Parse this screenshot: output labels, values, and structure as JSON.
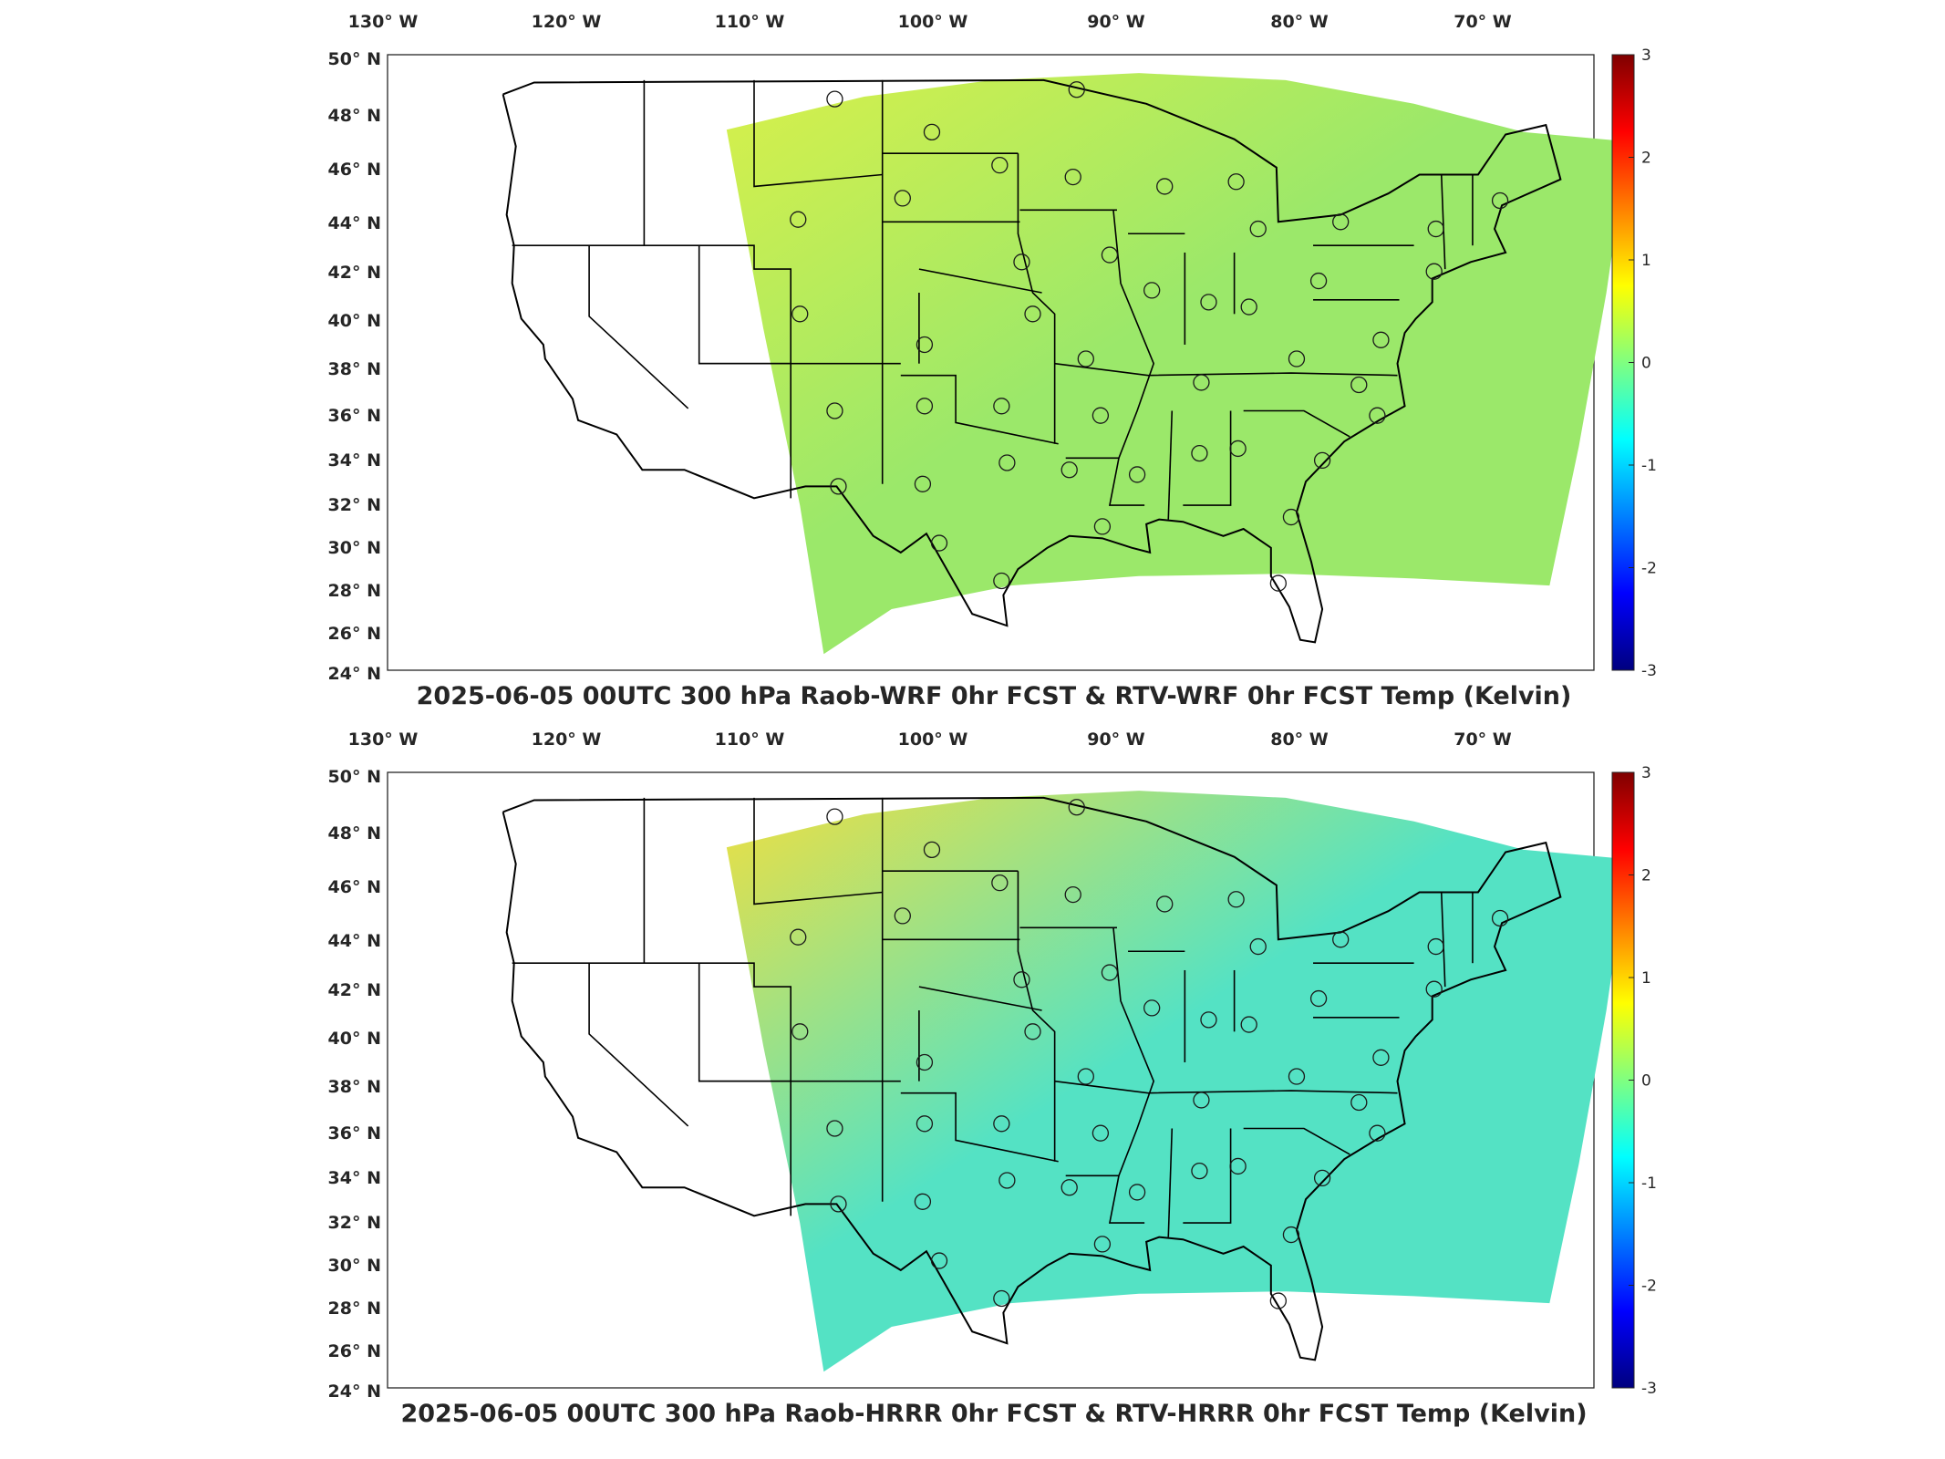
{
  "panels": [
    {
      "title": "2025-06-05 00UTC 300 hPa Raob-WRF 0hr FCST & RTV-WRF 0hr FCST Temp (Kelvin)",
      "field_tint": "#9be86a",
      "field_tint_secondary": "#d8f04a"
    },
    {
      "title": "2025-06-05 00UTC 300 hPa Raob-HRRR 0hr FCST & RTV-HRRR 0hr FCST Temp (Kelvin)",
      "field_tint": "#54e2c4",
      "field_tint_secondary": "#f0e040"
    }
  ],
  "lon_labels": [
    "130° W",
    "120° W",
    "110° W",
    "100° W",
    "90° W",
    "80° W",
    "70° W"
  ],
  "lat_labels": [
    "50° N",
    "48° N",
    "46° N",
    "44° N",
    "42° N",
    "40° N",
    "38° N",
    "36° N",
    "34° N",
    "32° N",
    "30° N",
    "28° N",
    "26° N",
    "24° N"
  ],
  "colorbar": {
    "ticks": [
      "3",
      "2",
      "1",
      "0",
      "-1",
      "-2",
      "-3"
    ],
    "colormap": [
      "#7f0000",
      "#ff0000",
      "#ff8000",
      "#ffff00",
      "#80ff80",
      "#00ffff",
      "#0080ff",
      "#0000ff",
      "#00007f"
    ]
  }
}
